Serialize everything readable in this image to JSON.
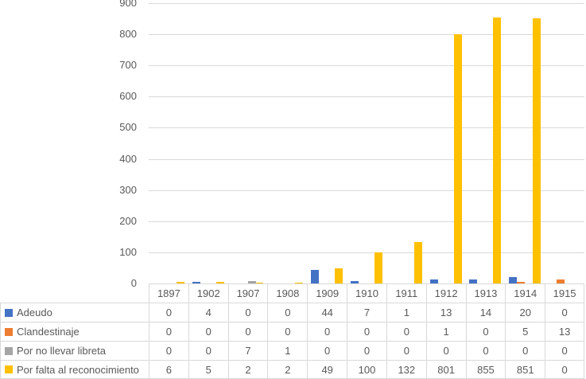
{
  "chart": {
    "background": "#FFFFFF",
    "grid_color": "#D9D9D9",
    "border_color": "#D9D9D9",
    "text_color": "#595959"
  },
  "chart_data": {
    "type": "bar",
    "title": "",
    "xlabel": "",
    "ylabel": "",
    "ylim": [
      0,
      900
    ],
    "yticks": [
      0,
      100,
      200,
      300,
      400,
      500,
      600,
      700,
      800,
      900
    ],
    "grid": true,
    "legend_position": "data-table-left",
    "categories": [
      "1897",
      "1902",
      "1907",
      "1908",
      "1909",
      "1910",
      "1911",
      "1912",
      "1913",
      "1914",
      "1915"
    ],
    "series": [
      {
        "name": "Adeudo",
        "color": "#4472C4",
        "values": [
          0,
          4,
          0,
          0,
          44,
          7,
          1,
          13,
          14,
          20,
          0
        ]
      },
      {
        "name": "Clandestinaje",
        "color": "#ED7D31",
        "values": [
          0,
          0,
          0,
          0,
          0,
          0,
          0,
          1,
          0,
          5,
          13
        ]
      },
      {
        "name": "Por no llevar libreta",
        "color": "#A5A5A5",
        "values": [
          0,
          0,
          7,
          1,
          0,
          0,
          0,
          0,
          0,
          0,
          0
        ]
      },
      {
        "name": "Por falta al reconocimiento",
        "color": "#FFC000",
        "values": [
          6,
          5,
          2,
          2,
          49,
          100,
          132,
          801,
          855,
          851,
          0
        ]
      }
    ]
  }
}
